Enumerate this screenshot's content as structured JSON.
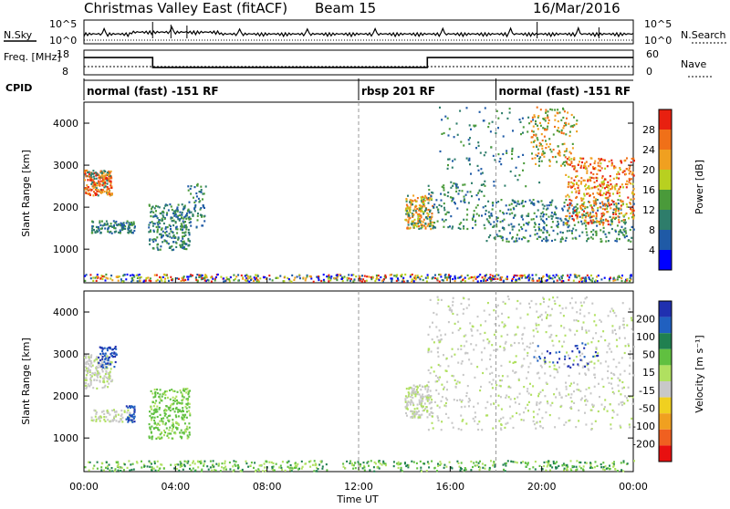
{
  "header": {
    "title": "Christmas Valley East (fitACF)",
    "beam": "Beam 15",
    "date": "16/Mar/2016"
  },
  "top_panels": {
    "nsky_label": "N.Sky",
    "nsearch_label": "N.Search",
    "nsky_ticks": [
      "10^5",
      "10^0"
    ],
    "nsearch_ticks": [
      "10^5",
      "10^0"
    ],
    "freq_label": "Freq. [MHz]",
    "freq_ticks": [
      "18",
      "8"
    ],
    "nave_label": "Nave",
    "nave_ticks": [
      "60",
      "0"
    ],
    "cpid_label": "CPID",
    "cpid_segments": [
      {
        "label": "normal (fast) -151 RF",
        "start_hour": 0,
        "end_hour": 12
      },
      {
        "label": "rbsp 201 RF",
        "start_hour": 12,
        "end_hour": 18
      },
      {
        "label": "normal (fast) -151 RF",
        "start_hour": 18,
        "end_hour": 24
      }
    ],
    "freq_series": [
      {
        "x": 0,
        "y": 15
      },
      {
        "x": 3,
        "y": 15
      },
      {
        "x": 3,
        "y": 11
      },
      {
        "x": 15,
        "y": 11
      },
      {
        "x": 15,
        "y": 15
      },
      {
        "x": 24,
        "y": 15
      }
    ]
  },
  "chart_data": [
    {
      "type": "heatmap",
      "panel": "Power",
      "ylabel": "Slant Range [km]",
      "xlabel": "",
      "ylim": [
        200,
        4500
      ],
      "xlim": [
        0,
        24
      ],
      "y_ticks": [
        "1000",
        "2000",
        "3000",
        "4000"
      ],
      "colorbar_label": "Power [dB]",
      "colorbar_ticks": [
        "4",
        "8",
        "12",
        "16",
        "20",
        "24",
        "28"
      ],
      "colorbar_colors": [
        "#0000ff",
        "#1f5aa6",
        "#2e7d6b",
        "#4a9a3a",
        "#b8d020",
        "#f0a020",
        "#f07018",
        "#e82010"
      ]
    },
    {
      "type": "heatmap",
      "panel": "Velocity",
      "ylabel": "Slant Range [km]",
      "xlabel": "Time UT",
      "ylim": [
        200,
        4500
      ],
      "xlim": [
        0,
        24
      ],
      "y_ticks": [
        "1000",
        "2000",
        "3000",
        "4000"
      ],
      "x_ticks": [
        "00:00",
        "04:00",
        "08:00",
        "12:00",
        "16:00",
        "20:00",
        "00:00"
      ],
      "colorbar_label": "Velocity [m s⁻¹]",
      "colorbar_ticks": [
        "200",
        "100",
        "50",
        "15",
        "-15",
        "-50",
        "-100",
        "-200"
      ],
      "colorbar_colors": [
        "#2030b0",
        "#2060c0",
        "#208050",
        "#60c040",
        "#b0e060",
        "#c8c8c8",
        "#f0d020",
        "#f0a020",
        "#f06020",
        "#e81010"
      ]
    }
  ]
}
